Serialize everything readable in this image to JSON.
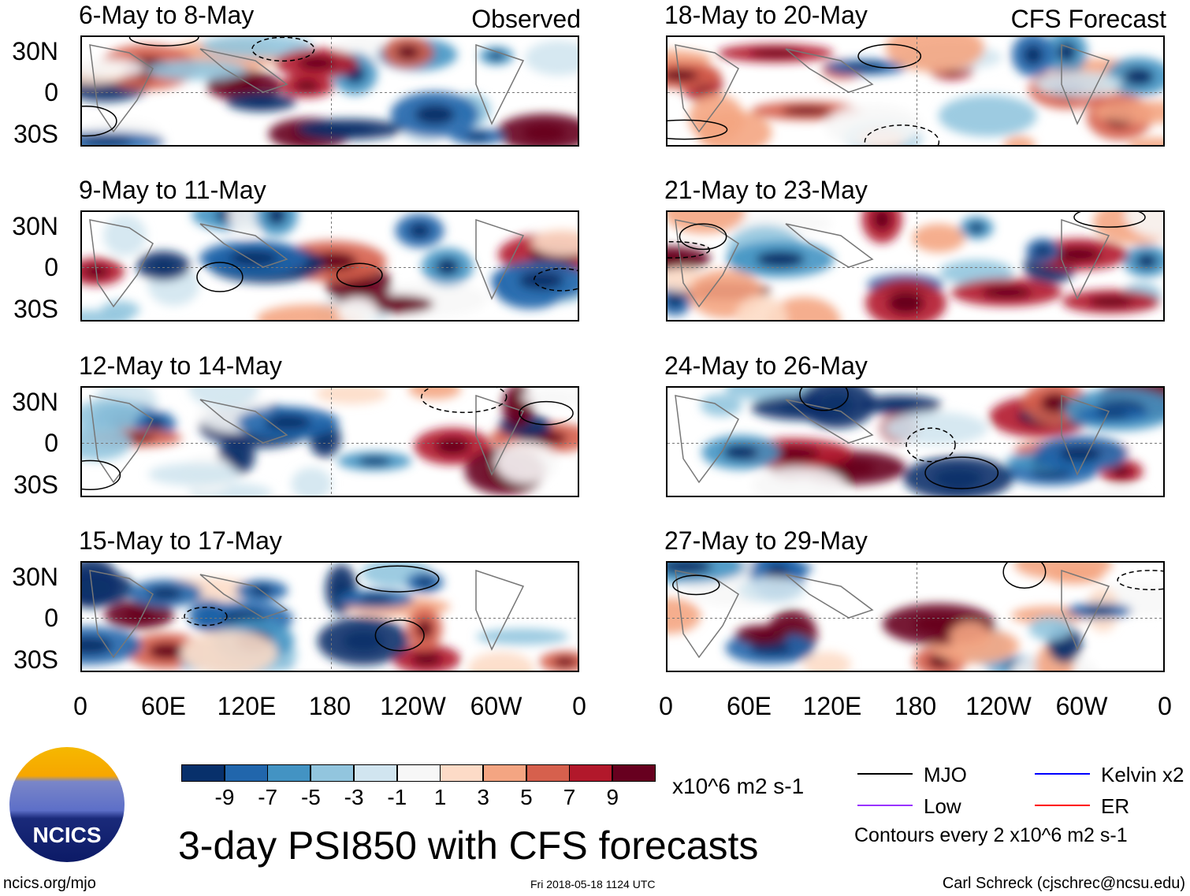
{
  "title": "3-day PSI850 with CFS forecasts",
  "columns": {
    "left_label": "Observed",
    "right_label": "CFS Forecast"
  },
  "panels_left": [
    "6-May to 8-May",
    "9-May to 11-May",
    "12-May to 14-May",
    "15-May to 17-May"
  ],
  "panels_right": [
    "18-May to 20-May",
    "21-May to 23-May",
    "24-May to 26-May",
    "27-May to 29-May"
  ],
  "lat_labels": [
    "30N",
    "0",
    "30S"
  ],
  "lon_labels": [
    "0",
    "60E",
    "120E",
    "180",
    "120W",
    "60W",
    "0"
  ],
  "chart_data": {
    "type": "heatmap",
    "title": "3-day PSI850 with CFS forecasts",
    "variable": "850-hPa streamfunction anomaly",
    "units": "x10^6 m2 s-1",
    "colorbar": {
      "levels": [
        "-9",
        "-7",
        "-5",
        "-3",
        "-1",
        "1",
        "3",
        "5",
        "7",
        "9"
      ],
      "colors": [
        "#08306b",
        "#2166ac",
        "#4393c3",
        "#92c5de",
        "#d1e5f0",
        "#f7f7f7",
        "#fddbc7",
        "#f4a582",
        "#d6604d",
        "#b2182b",
        "#67001f"
      ]
    },
    "legend": [
      {
        "label": "MJO",
        "color": "#000000"
      },
      {
        "label": "Kelvin x2",
        "color": "#0000ff"
      },
      {
        "label": "Low",
        "color": "#9933ff"
      },
      {
        "label": "ER",
        "color": "#ff0000"
      }
    ],
    "contour_note": "Contours every 2 x10^6 m2 s-1"
  },
  "footer": {
    "site": "ncics.org/mjo",
    "timestamp": "Fri 2018-05-18 1124 UTC",
    "author": "Carl Schreck (cjschrec@ncsu.edu)",
    "logo_text": "NCICS"
  }
}
